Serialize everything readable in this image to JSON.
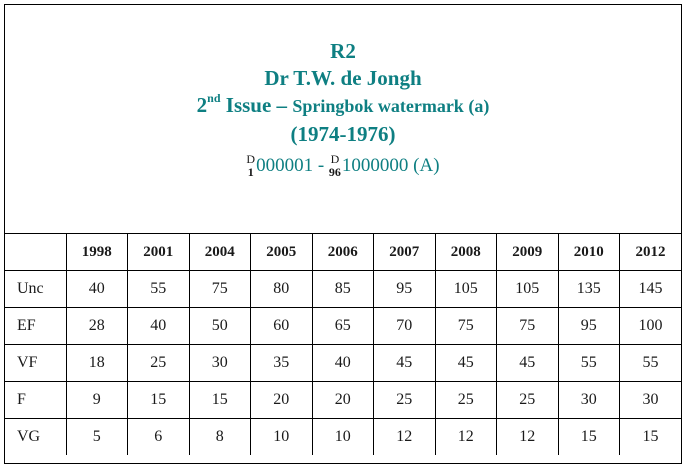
{
  "header": {
    "code": "R2",
    "name": "Dr T.W. de Jongh",
    "issue_number": "2",
    "issue_ordinal_suffix": "nd",
    "issue_word": " Issue – ",
    "watermark": "Springbok watermark (a)",
    "years": "(1974-1976)",
    "serial": {
      "start_prefix_top": "D",
      "start_prefix_bottom": "1",
      "start_number": "000001 - ",
      "end_prefix_top": "D",
      "end_prefix_bottom": "96",
      "end_number": "1000000 (A)"
    }
  },
  "table": {
    "corner": "",
    "years": [
      "1998",
      "2001",
      "2004",
      "2005",
      "2006",
      "2007",
      "2008",
      "2009",
      "2010",
      "2012"
    ],
    "rows": [
      {
        "grade": "Unc",
        "values": [
          "40",
          "55",
          "75",
          "80",
          "85",
          "95",
          "105",
          "105",
          "135",
          "145"
        ]
      },
      {
        "grade": "EF",
        "values": [
          "28",
          "40",
          "50",
          "60",
          "65",
          "70",
          "75",
          "75",
          "95",
          "100"
        ]
      },
      {
        "grade": "VF",
        "values": [
          "18",
          "25",
          "30",
          "35",
          "40",
          "45",
          "45",
          "45",
          "55",
          "55"
        ]
      },
      {
        "grade": "F",
        "values": [
          "9",
          "15",
          "15",
          "20",
          "20",
          "25",
          "25",
          "25",
          "30",
          "30"
        ]
      },
      {
        "grade": "VG",
        "values": [
          "5",
          "6",
          "8",
          "10",
          "10",
          "12",
          "12",
          "12",
          "15",
          "15"
        ]
      }
    ]
  },
  "colors": {
    "title_teal": "#0e7f82",
    "text": "#1a1a1a",
    "border": "#000000"
  }
}
